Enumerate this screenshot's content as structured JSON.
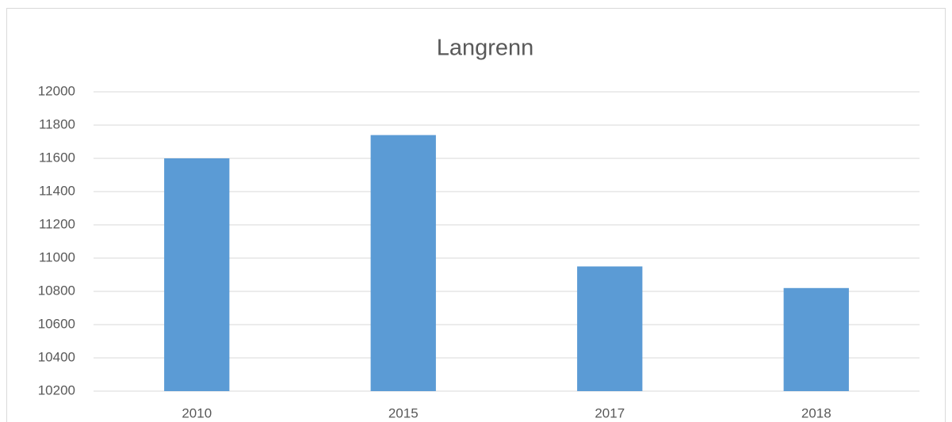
{
  "chart_data": {
    "type": "bar",
    "title": "Langrenn",
    "categories": [
      "2010",
      "2015",
      "2017",
      "2018"
    ],
    "values": [
      11600,
      11740,
      10950,
      10820
    ],
    "color": "#5b9bd5",
    "ylim": [
      10200,
      12000
    ],
    "yticks": [
      10200,
      10400,
      10600,
      10800,
      11000,
      11200,
      11400,
      11600,
      11800,
      12000
    ],
    "grid": true
  }
}
